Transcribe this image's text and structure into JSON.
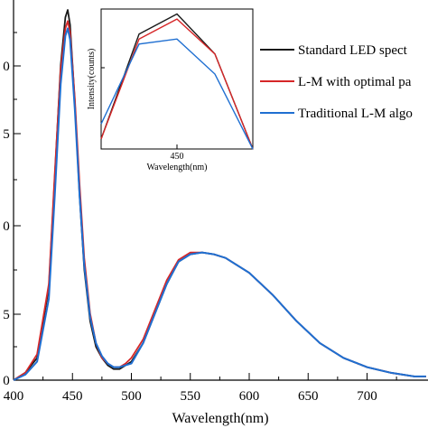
{
  "chart_data": [
    {
      "type": "line",
      "title": "",
      "xlabel": "Wavelength(nm)",
      "ylabel": "",
      "xlim": [
        400,
        750
      ],
      "ylim": [
        0,
        1.0
      ],
      "x_ticks": [
        "400",
        "450",
        "500",
        "550",
        "600",
        "650",
        "700"
      ],
      "y_tick_labels": [
        "0",
        "5",
        "0",
        "5",
        "0"
      ],
      "grid": false,
      "legend_position": "top-right",
      "series": [
        {
          "name": "Standard LED spect",
          "color": "#1a1a1a",
          "x": [
            400,
            410,
            420,
            430,
            435,
            440,
            444,
            446,
            448,
            452,
            456,
            460,
            465,
            470,
            475,
            480,
            485,
            490,
            495,
            500,
            510,
            520,
            530,
            540,
            550,
            560,
            570,
            580,
            600,
            620,
            640,
            660,
            680,
            700,
            720,
            740,
            750
          ],
          "y": [
            0.0,
            0.02,
            0.06,
            0.25,
            0.55,
            0.85,
            0.98,
            1.0,
            0.96,
            0.75,
            0.5,
            0.3,
            0.16,
            0.09,
            0.06,
            0.04,
            0.03,
            0.03,
            0.04,
            0.05,
            0.1,
            0.18,
            0.26,
            0.32,
            0.34,
            0.345,
            0.34,
            0.33,
            0.29,
            0.23,
            0.16,
            0.1,
            0.06,
            0.035,
            0.02,
            0.01,
            0.01
          ]
        },
        {
          "name": "L-M with optimal pa",
          "color": "#d62728",
          "x": [
            400,
            410,
            420,
            430,
            435,
            440,
            444,
            446,
            448,
            452,
            456,
            460,
            465,
            470,
            475,
            480,
            485,
            490,
            495,
            500,
            510,
            520,
            530,
            540,
            550,
            560,
            570,
            580,
            600,
            620,
            640,
            660,
            680,
            700,
            720,
            740,
            750
          ],
          "y": [
            0.0,
            0.02,
            0.07,
            0.26,
            0.56,
            0.84,
            0.95,
            0.97,
            0.94,
            0.76,
            0.53,
            0.33,
            0.18,
            0.1,
            0.06,
            0.045,
            0.035,
            0.035,
            0.045,
            0.06,
            0.11,
            0.19,
            0.27,
            0.325,
            0.345,
            0.345,
            0.34,
            0.33,
            0.29,
            0.23,
            0.16,
            0.1,
            0.06,
            0.035,
            0.02,
            0.01,
            0.01
          ]
        },
        {
          "name": "Traditional L-M algo",
          "color": "#1f6fd1",
          "x": [
            400,
            410,
            420,
            430,
            435,
            440,
            444,
            446,
            448,
            452,
            456,
            460,
            465,
            470,
            475,
            480,
            485,
            490,
            495,
            500,
            510,
            520,
            530,
            540,
            550,
            560,
            570,
            580,
            600,
            620,
            640,
            660,
            680,
            700,
            720,
            740,
            750
          ],
          "y": [
            0.0,
            0.015,
            0.05,
            0.22,
            0.5,
            0.8,
            0.93,
            0.95,
            0.92,
            0.73,
            0.5,
            0.31,
            0.17,
            0.1,
            0.065,
            0.045,
            0.035,
            0.035,
            0.04,
            0.045,
            0.1,
            0.18,
            0.26,
            0.32,
            0.34,
            0.345,
            0.34,
            0.33,
            0.29,
            0.23,
            0.16,
            0.1,
            0.06,
            0.035,
            0.02,
            0.01,
            0.01
          ]
        }
      ]
    },
    {
      "type": "line",
      "title": "",
      "xlabel": "Wavelength(nm)",
      "ylabel": "Intensity(counts)",
      "xlim": [
        444,
        456
      ],
      "ylim": [
        0.86,
        1.0
      ],
      "x_ticks": [
        "450"
      ],
      "series": [
        {
          "name": "Standard LED spect",
          "color": "#1a1a1a",
          "x": [
            444,
            447,
            450,
            453,
            456
          ],
          "y": [
            0.87,
            0.975,
            0.995,
            0.955,
            0.86
          ]
        },
        {
          "name": "L-M with optimal pa",
          "color": "#d62728",
          "x": [
            444,
            447,
            450,
            453,
            456
          ],
          "y": [
            0.87,
            0.97,
            0.99,
            0.955,
            0.86
          ]
        },
        {
          "name": "Traditional L-M algo",
          "color": "#1f6fd1",
          "x": [
            444,
            447,
            450,
            453,
            456
          ],
          "y": [
            0.885,
            0.965,
            0.97,
            0.935,
            0.86
          ]
        }
      ]
    }
  ]
}
